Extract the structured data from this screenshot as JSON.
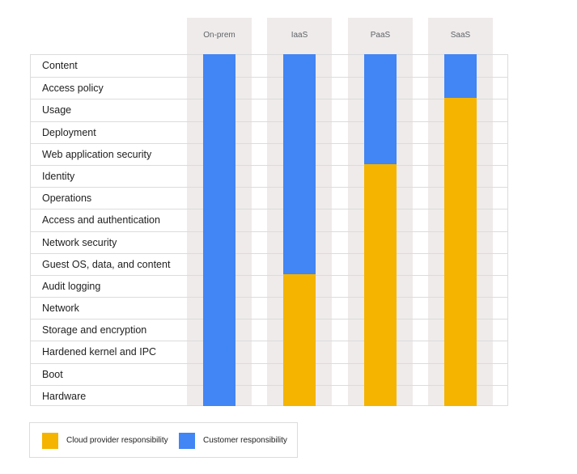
{
  "layers": [
    "Content",
    "Access policy",
    "Usage",
    "Deployment",
    "Web application security",
    "Identity",
    "Operations",
    "Access and authentication",
    "Network security",
    "Guest OS, data, and content",
    "Audit logging",
    "Network",
    "Storage and encryption",
    "Hardened kernel and IPC",
    "Boot",
    "Hardware"
  ],
  "models": [
    {
      "name": "On-prem",
      "customer_layers": 16,
      "provider_layers": 0
    },
    {
      "name": "IaaS",
      "customer_layers": 10,
      "provider_layers": 6
    },
    {
      "name": "PaaS",
      "customer_layers": 5,
      "provider_layers": 11
    },
    {
      "name": "SaaS",
      "customer_layers": 2,
      "provider_layers": 14
    }
  ],
  "legend": {
    "provider": {
      "label": "Cloud provider responsibility",
      "color": "#f4b400"
    },
    "customer": {
      "label": "Customer responsibility",
      "color": "#4285f4"
    }
  }
}
